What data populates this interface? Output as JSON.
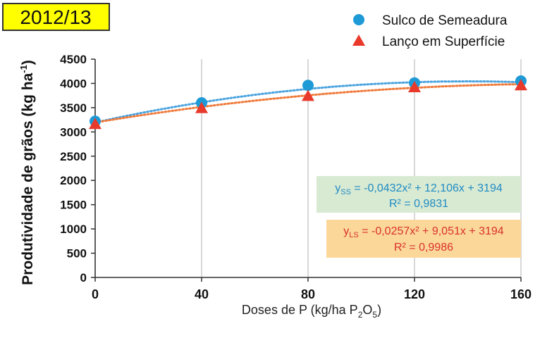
{
  "chart_data": {
    "type": "scatter",
    "title": "2012/13",
    "x": [
      0,
      40,
      80,
      120,
      160
    ],
    "xticks": [
      "0",
      "40",
      "80",
      "120",
      "160"
    ],
    "xlim": [
      0,
      160
    ],
    "ylim": [
      0,
      4500
    ],
    "yticks": [
      "0",
      "500",
      "1000",
      "1500",
      "2000",
      "2500",
      "3000",
      "3500",
      "4000",
      "4500"
    ],
    "xlabel": {
      "pre": "Doses de P (kg/ha P",
      "sub1": "2",
      "mid": "O",
      "sub2": "5",
      "post": ")"
    },
    "ylabel": {
      "pre": "Produtividade de grãos (kg ha",
      "sup": "-1",
      "post": ")"
    },
    "grid": "vertical",
    "series": [
      {
        "name": "Sulco de Semeadura",
        "marker": "circle",
        "color": "#1e9ad6",
        "values": [
          3220,
          3600,
          3960,
          4010,
          4050
        ],
        "trend": {
          "a": -0.0432,
          "b": 12.106,
          "c": 3194
        },
        "equation": {
          "y": "y",
          "sub": "SS",
          "text": " = -0,0432x² + 12,106x + 3194"
        },
        "r2": "R² = 0,9831",
        "box_color": "#d9ead3"
      },
      {
        "name": "Lanço em Superfície",
        "marker": "triangle",
        "color": "#e8392b",
        "values": [
          3160,
          3490,
          3740,
          3920,
          3960
        ],
        "trend": {
          "a": -0.0257,
          "b": 9.051,
          "c": 3194
        },
        "equation": {
          "y": "y",
          "sub": "LS",
          "text": " = -0,0257x² + 9,051x + 3194"
        },
        "r2": "R² = 0,9986",
        "box_color": "#fbd79a"
      }
    ],
    "trend_colors": [
      "#4aa3df",
      "#f07a3a"
    ],
    "title_box_color": "#ffff00",
    "legend_position": "top-right"
  }
}
